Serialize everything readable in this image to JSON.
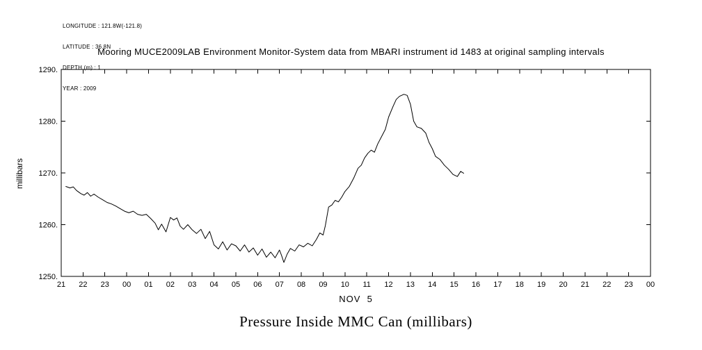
{
  "meta": {
    "longitude": "LONGITUDE : 121.8W(-121.8)",
    "latitude": "LATITUDE : 36.8N",
    "depth": "DEPTH (m) : 1",
    "year": "YEAR : 2009"
  },
  "header": {
    "title": "Mooring MUCE2009LAB Environment Monitor-System data from MBARI instrument id 1483 at original sampling intervals"
  },
  "caption": "Pressure Inside MMC Can (millibars)",
  "chart_data": {
    "type": "line",
    "title": "Mooring MUCE2009LAB Environment Monitor-System data from MBARI instrument id 1483 at original sampling intervals",
    "xlabel": "NOV  5",
    "ylabel": "millibars",
    "line_color": "#000000",
    "grid": false,
    "ylim": [
      1250,
      1290
    ],
    "xlim": [
      0,
      27
    ],
    "x_tick_labels": [
      "21",
      "22",
      "23",
      "00",
      "01",
      "02",
      "03",
      "04",
      "05",
      "06",
      "07",
      "08",
      "09",
      "10",
      "11",
      "12",
      "13",
      "14",
      "15",
      "16",
      "17",
      "18",
      "19",
      "20",
      "21",
      "22",
      "23",
      "00"
    ],
    "y_ticks": [
      1250,
      1260,
      1270,
      1280,
      1290
    ],
    "y_tick_labels": [
      "1250.",
      "1260.",
      "1270.",
      "1280.",
      "1290."
    ],
    "series": [
      {
        "name": "pressure-inside-mmc-can",
        "units": "millibars",
        "points": [
          [
            0.2,
            1267.4
          ],
          [
            0.4,
            1267.1
          ],
          [
            0.55,
            1267.3
          ],
          [
            0.7,
            1266.6
          ],
          [
            0.9,
            1266.0
          ],
          [
            1.05,
            1265.7
          ],
          [
            1.2,
            1266.2
          ],
          [
            1.35,
            1265.5
          ],
          [
            1.5,
            1265.9
          ],
          [
            1.7,
            1265.3
          ],
          [
            1.9,
            1264.8
          ],
          [
            2.1,
            1264.3
          ],
          [
            2.3,
            1264.0
          ],
          [
            2.5,
            1263.6
          ],
          [
            2.7,
            1263.1
          ],
          [
            2.9,
            1262.6
          ],
          [
            3.1,
            1262.3
          ],
          [
            3.3,
            1262.6
          ],
          [
            3.5,
            1262.0
          ],
          [
            3.7,
            1261.8
          ],
          [
            3.9,
            1262.0
          ],
          [
            4.1,
            1261.2
          ],
          [
            4.3,
            1260.3
          ],
          [
            4.45,
            1259.0
          ],
          [
            4.6,
            1260.1
          ],
          [
            4.8,
            1258.6
          ],
          [
            5.0,
            1261.4
          ],
          [
            5.15,
            1260.9
          ],
          [
            5.3,
            1261.3
          ],
          [
            5.45,
            1259.7
          ],
          [
            5.6,
            1259.1
          ],
          [
            5.8,
            1260.0
          ],
          [
            6.0,
            1259.0
          ],
          [
            6.2,
            1258.3
          ],
          [
            6.4,
            1259.1
          ],
          [
            6.6,
            1257.3
          ],
          [
            6.8,
            1258.7
          ],
          [
            7.0,
            1256.1
          ],
          [
            7.2,
            1255.3
          ],
          [
            7.4,
            1256.7
          ],
          [
            7.6,
            1255.1
          ],
          [
            7.8,
            1256.3
          ],
          [
            8.0,
            1255.9
          ],
          [
            8.2,
            1254.9
          ],
          [
            8.4,
            1256.1
          ],
          [
            8.6,
            1254.7
          ],
          [
            8.8,
            1255.5
          ],
          [
            9.0,
            1254.1
          ],
          [
            9.2,
            1255.3
          ],
          [
            9.4,
            1253.7
          ],
          [
            9.6,
            1254.7
          ],
          [
            9.8,
            1253.6
          ],
          [
            10.0,
            1255.1
          ],
          [
            10.1,
            1254.0
          ],
          [
            10.2,
            1252.7
          ],
          [
            10.35,
            1254.3
          ],
          [
            10.5,
            1255.4
          ],
          [
            10.7,
            1254.9
          ],
          [
            10.9,
            1256.1
          ],
          [
            11.1,
            1255.7
          ],
          [
            11.3,
            1256.4
          ],
          [
            11.5,
            1255.9
          ],
          [
            11.7,
            1257.2
          ],
          [
            11.85,
            1258.4
          ],
          [
            12.0,
            1258.0
          ],
          [
            12.1,
            1259.8
          ],
          [
            12.25,
            1263.4
          ],
          [
            12.4,
            1263.8
          ],
          [
            12.55,
            1264.7
          ],
          [
            12.7,
            1264.4
          ],
          [
            12.85,
            1265.3
          ],
          [
            13.0,
            1266.4
          ],
          [
            13.2,
            1267.4
          ],
          [
            13.4,
            1269.0
          ],
          [
            13.6,
            1270.9
          ],
          [
            13.75,
            1271.5
          ],
          [
            13.9,
            1272.9
          ],
          [
            14.05,
            1273.8
          ],
          [
            14.2,
            1274.4
          ],
          [
            14.35,
            1274.0
          ],
          [
            14.5,
            1275.6
          ],
          [
            14.7,
            1277.2
          ],
          [
            14.85,
            1278.4
          ],
          [
            15.0,
            1280.8
          ],
          [
            15.2,
            1282.8
          ],
          [
            15.35,
            1284.2
          ],
          [
            15.5,
            1284.8
          ],
          [
            15.7,
            1285.2
          ],
          [
            15.85,
            1285.0
          ],
          [
            16.0,
            1283.3
          ],
          [
            16.15,
            1280.0
          ],
          [
            16.3,
            1278.9
          ],
          [
            16.5,
            1278.6
          ],
          [
            16.7,
            1277.7
          ],
          [
            16.85,
            1275.9
          ],
          [
            17.0,
            1274.7
          ],
          [
            17.15,
            1273.2
          ],
          [
            17.35,
            1272.6
          ],
          [
            17.55,
            1271.5
          ],
          [
            17.75,
            1270.7
          ],
          [
            17.95,
            1269.7
          ],
          [
            18.15,
            1269.3
          ],
          [
            18.3,
            1270.3
          ],
          [
            18.45,
            1269.9
          ]
        ]
      }
    ],
    "x_axis_note": "x axis is time of day (hours), starting 21:00 Nov 4 through 00:00 Nov 6, day label NOV 5"
  }
}
